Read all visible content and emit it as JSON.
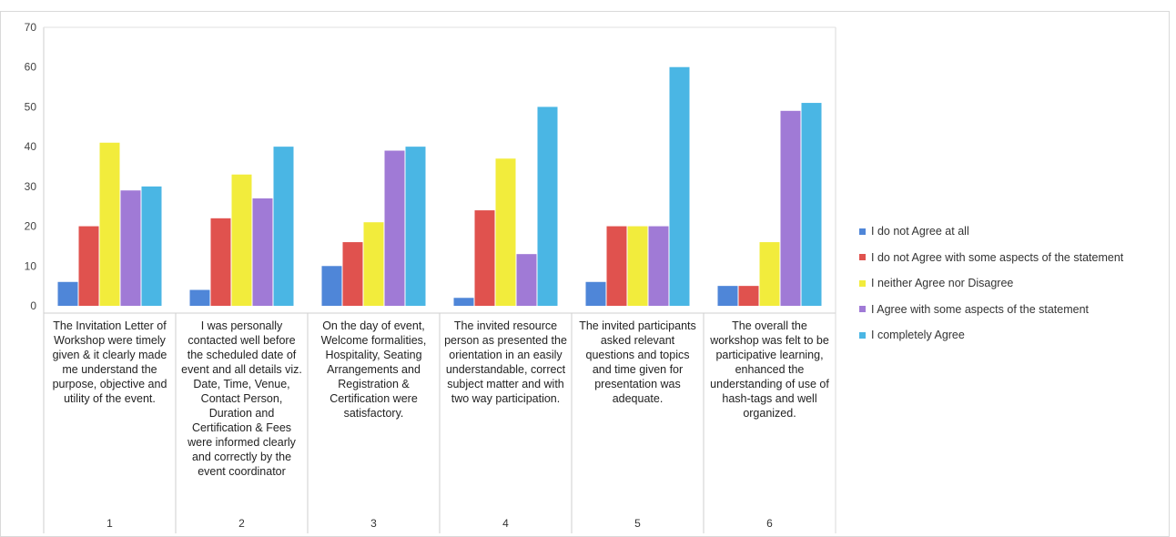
{
  "chart_data": {
    "type": "bar",
    "categories": [
      "The Invitation Letter of Workshop were timely given & it clearly made me understand the purpose, objective and utility of the event.",
      "I was personally contacted well before the scheduled date of event and all details viz. Date, Time, Venue, Contact Person, Duration and Certification & Fees were informed clearly and correctly by the event coordinator",
      "On the day of event, Welcome formalities, Hospitality, Seating Arrangements and Registration & Certification were satisfactory.",
      "The invited resource person as presented the orientation in an easily understandable, correct subject matter and with two way participation.",
      "The invited participants asked relevant questions and topics and time given for presentation was adequate.",
      "The overall the workshop was felt to be participative learning, enhanced the understanding of use of hash-tags and well organized."
    ],
    "category_numbers": [
      "1",
      "2",
      "3",
      "4",
      "5",
      "6"
    ],
    "series": [
      {
        "name": "I do not Agree at all",
        "color": "#4f86d8",
        "values": [
          6,
          4,
          10,
          2,
          6,
          5
        ]
      },
      {
        "name": "I do not Agree with some aspects of the statement",
        "color": "#e0524e",
        "values": [
          20,
          22,
          16,
          24,
          20,
          5
        ]
      },
      {
        "name": "I neither Agree nor Disagree",
        "color": "#f2ec3c",
        "values": [
          41,
          33,
          21,
          37,
          20,
          16
        ]
      },
      {
        "name": "I Agree with some aspects of the statement",
        "color": "#a07ad6",
        "values": [
          29,
          27,
          39,
          13,
          20,
          49
        ]
      },
      {
        "name": "I completely Agree",
        "color": "#4ab6e4",
        "values": [
          30,
          40,
          40,
          50,
          60,
          51
        ]
      }
    ],
    "yticks": [
      "0",
      "10",
      "20",
      "30",
      "40",
      "50",
      "60",
      "70"
    ],
    "ylim": [
      0,
      70
    ],
    "grid": false,
    "legend_position": "right",
    "title": "",
    "xlabel": "",
    "ylabel": ""
  }
}
